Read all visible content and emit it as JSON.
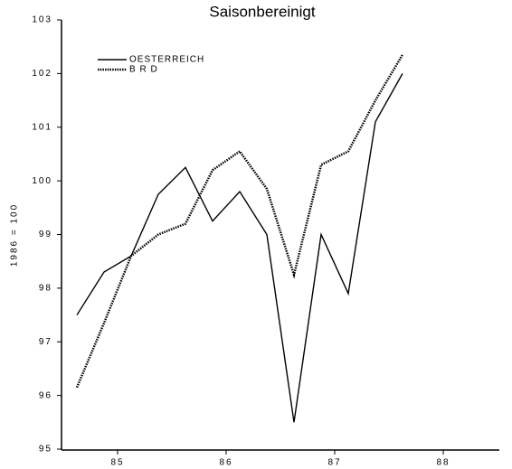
{
  "chart_data": {
    "type": "line",
    "title": "Saisonbereinigt",
    "y_label": "1986 = 100",
    "x": [
      85.125,
      85.375,
      85.625,
      85.875,
      86.125,
      86.375,
      86.625,
      86.875,
      87.125,
      87.375,
      87.625,
      87.875,
      88.125
    ],
    "series": [
      {
        "name": "OESTERREICH",
        "color": "#000000",
        "style": "solid",
        "values": [
          97.5,
          98.3,
          98.6,
          99.75,
          100.25,
          99.25,
          99.8,
          99.0,
          95.5,
          99.0,
          97.9,
          101.1,
          102.0
        ]
      },
      {
        "name": "B R D",
        "color": "#000000",
        "style": "dotted",
        "values": [
          96.15,
          97.35,
          98.6,
          99.0,
          99.2,
          100.2,
          100.55,
          99.85,
          98.25,
          100.3,
          100.55,
          101.5,
          102.35
        ]
      }
    ],
    "xlim": [
      85,
      89
    ],
    "xticks": [
      {
        "value": 85.5,
        "label": "85"
      },
      {
        "value": 86.5,
        "label": "86"
      },
      {
        "value": 87.5,
        "label": "87"
      },
      {
        "value": 88.5,
        "label": "88"
      }
    ],
    "ylim": [
      95,
      103
    ],
    "yticks": [
      95,
      96,
      97,
      98,
      99,
      100,
      101,
      102,
      103
    ],
    "legend": "top-left"
  }
}
